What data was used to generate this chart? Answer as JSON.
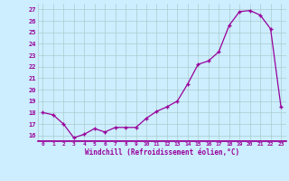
{
  "x": [
    0,
    1,
    2,
    3,
    4,
    5,
    6,
    7,
    8,
    9,
    10,
    11,
    12,
    13,
    14,
    15,
    16,
    17,
    18,
    19,
    20,
    21,
    22,
    23
  ],
  "y": [
    18.0,
    17.8,
    17.0,
    15.8,
    16.1,
    16.6,
    16.3,
    16.7,
    16.7,
    16.7,
    17.5,
    18.1,
    18.5,
    19.0,
    20.5,
    22.2,
    22.5,
    23.3,
    25.6,
    26.8,
    26.9,
    26.5,
    25.3,
    18.5
  ],
  "xlabel": "Windchill (Refroidissement éolien,°C)",
  "ylim": [
    15.5,
    27.5
  ],
  "yticks": [
    16,
    17,
    18,
    19,
    20,
    21,
    22,
    23,
    24,
    25,
    26,
    27
  ],
  "xticks": [
    0,
    1,
    2,
    3,
    4,
    5,
    6,
    7,
    8,
    9,
    10,
    11,
    12,
    13,
    14,
    15,
    16,
    17,
    18,
    19,
    20,
    21,
    22,
    23
  ],
  "line_color": "#990099",
  "marker_color": "#990099",
  "bg_color": "#cceeff",
  "grid_color": "#aacccc",
  "tick_color": "#990099",
  "xlabel_color": "#990099"
}
